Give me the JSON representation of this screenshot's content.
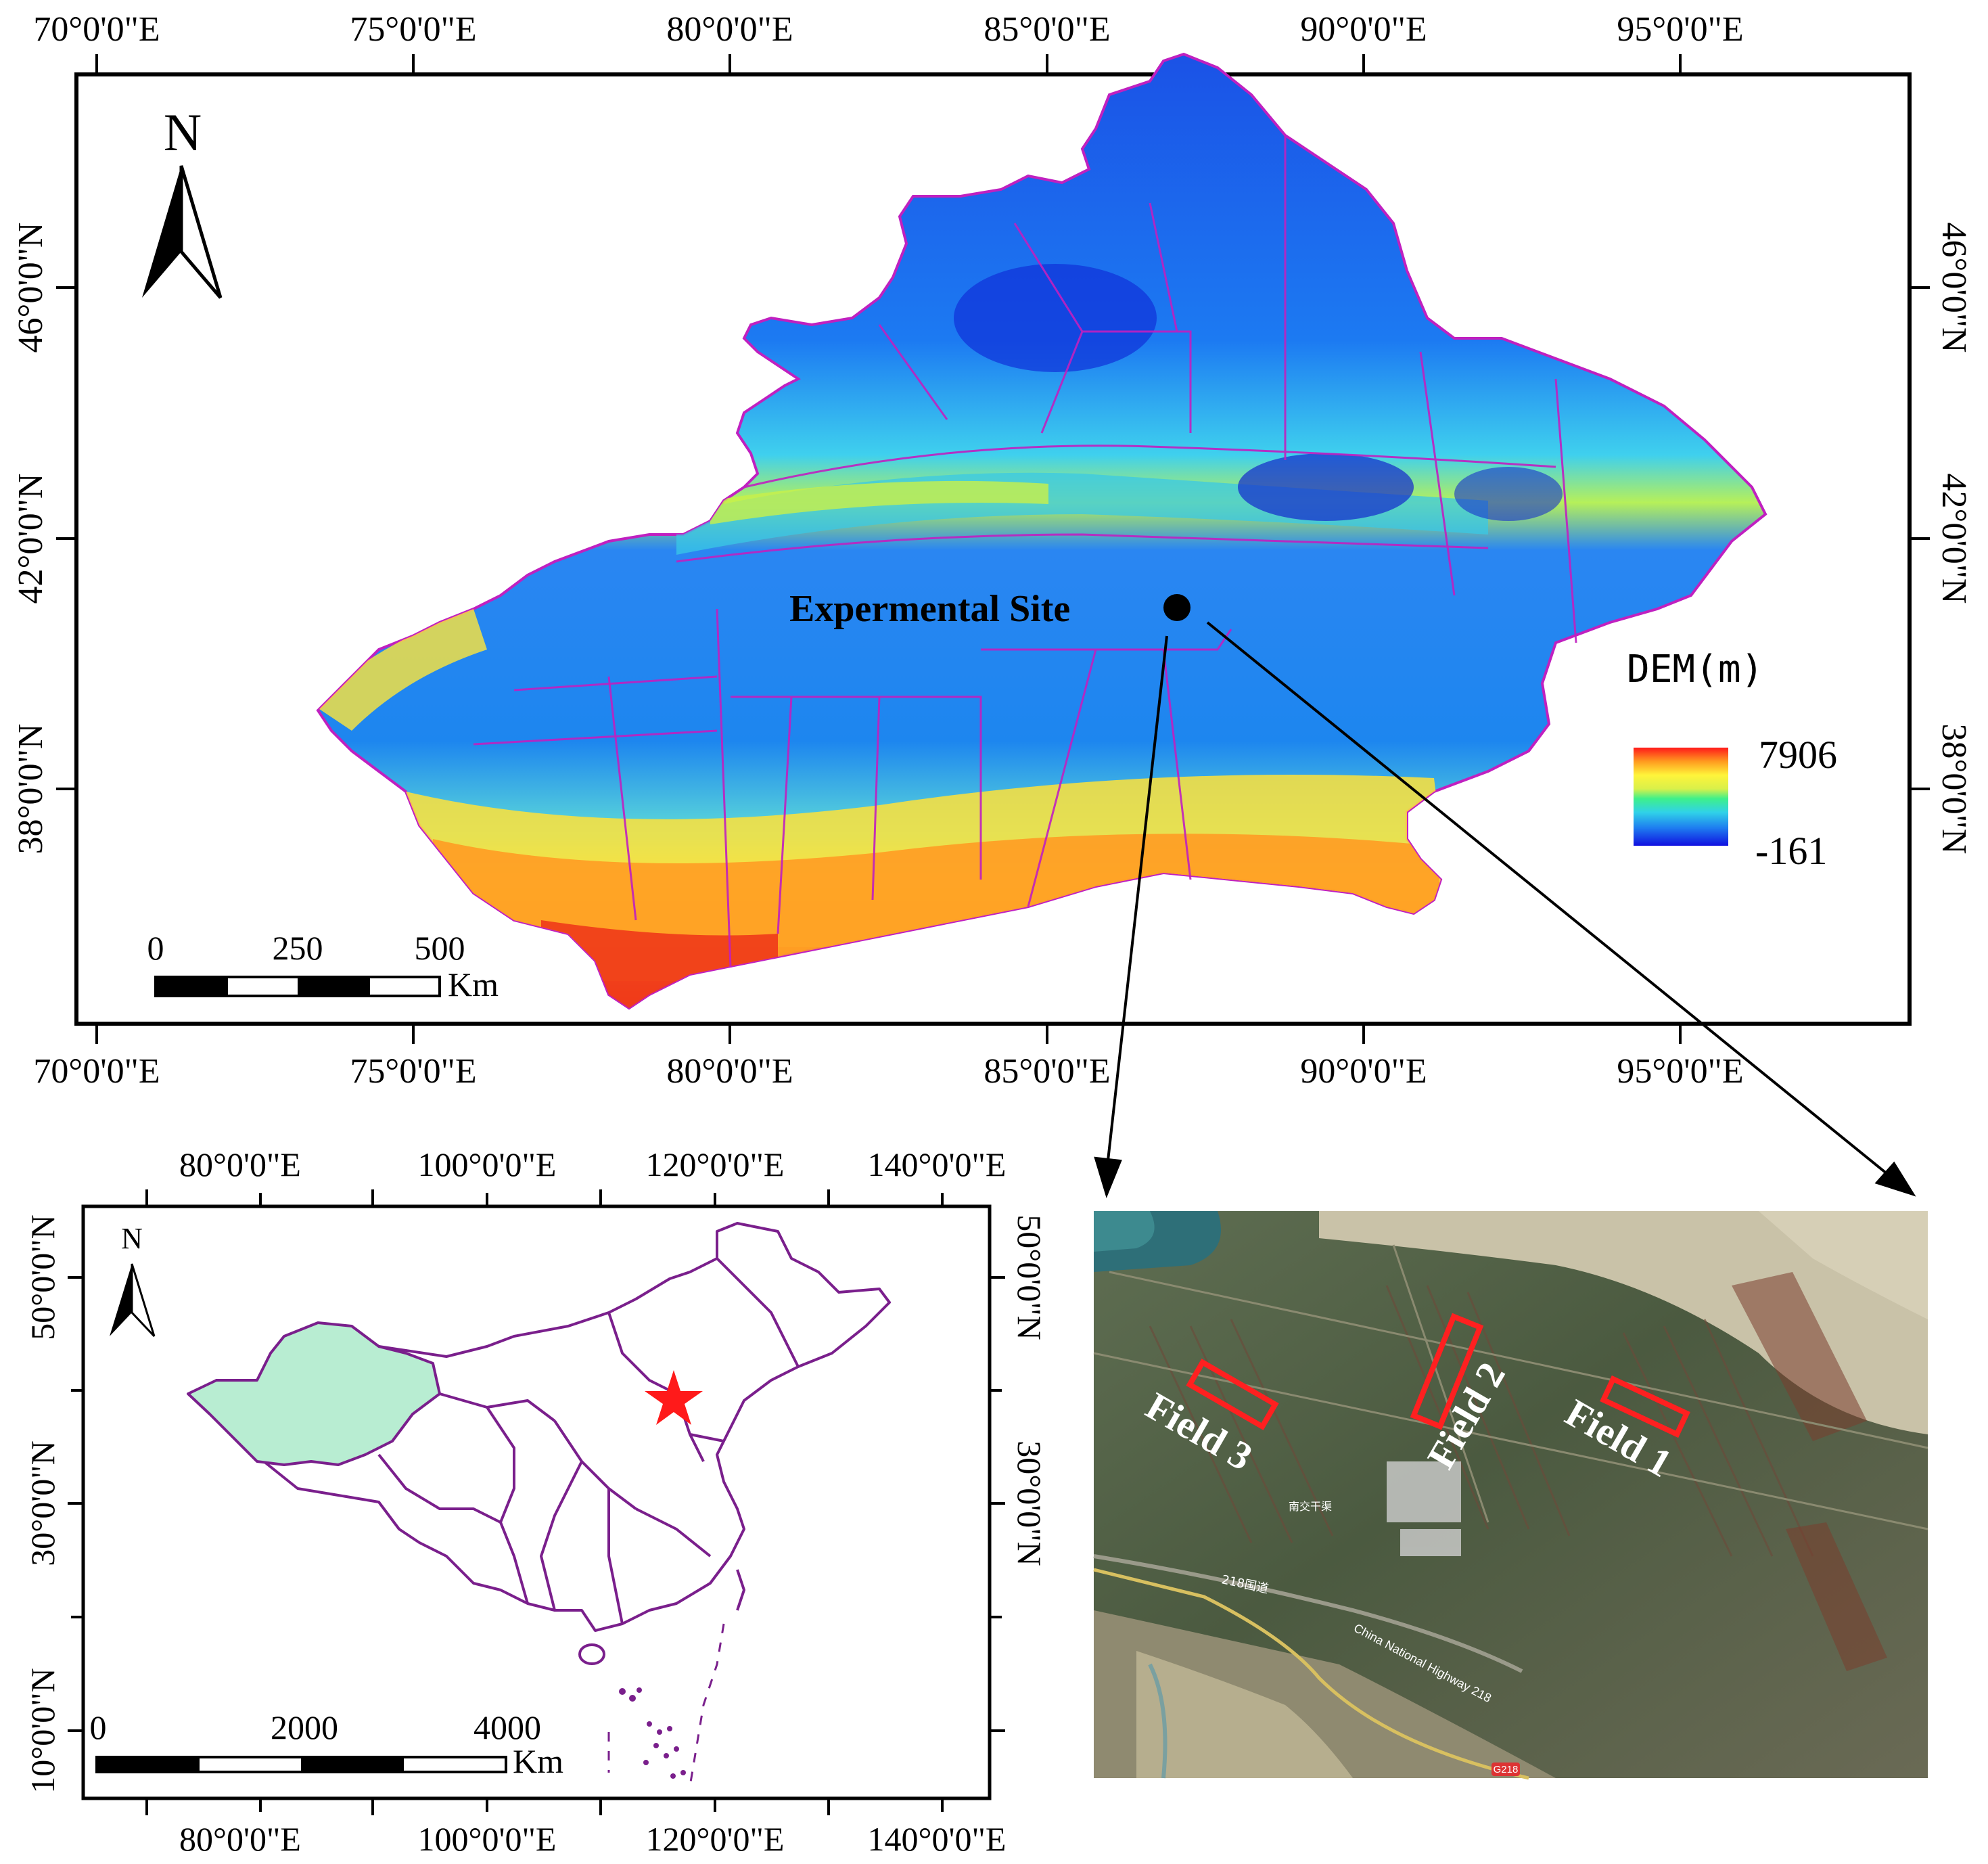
{
  "main_map": {
    "top_lon_ticks": [
      "70°0'0\"E",
      "75°0'0\"E",
      "80°0'0\"E",
      "85°0'0\"E",
      "90°0'0\"E",
      "95°0'0\"E"
    ],
    "bottom_lon_ticks": [
      "70°0'0\"E",
      "75°0'0\"E",
      "80°0'0\"E",
      "85°0'0\"E",
      "90°0'0\"E",
      "95°0'0\"E"
    ],
    "left_lat_ticks": [
      "46°0'0\"N",
      "42°0'0\"N",
      "38°0'0\"N"
    ],
    "right_lat_ticks": [
      "46°0'0\"N",
      "42°0'0\"N",
      "38°0'0\"N"
    ],
    "north_label": "N",
    "site_label": "Expermental  Site",
    "scale": {
      "labels": [
        "0",
        "250",
        "500"
      ],
      "unit": "Km"
    },
    "legend": {
      "title": "DEM(m)",
      "max": "7906",
      "min": "-161"
    }
  },
  "inset_china": {
    "top_lon_ticks": [
      "80°0'0\"E",
      "100°0'0\"E",
      "120°0'0\"E",
      "140°0'0\"E"
    ],
    "bottom_lon_ticks": [
      "80°0'0\"E",
      "100°0'0\"E",
      "120°0'0\"E",
      "140°0'0\"E"
    ],
    "left_lat_ticks": [
      "50°0'0\"N",
      "30°0'0\"N",
      "10°0'0\"N"
    ],
    "right_lat_ticks": [
      "50°0'0\"N",
      "30°0'0\"N"
    ],
    "north_label": "N",
    "scale": {
      "labels": [
        "0",
        "2000",
        "4000"
      ],
      "unit": "Km"
    },
    "colors": {
      "xinjiang_fill": "#b8edd2",
      "border": "#7a1f8c",
      "star": "#ff1a1a"
    }
  },
  "satellite": {
    "fields": [
      "Field 1",
      "Field 2",
      "Field 3"
    ],
    "road_labels": [
      "China National Highway 218",
      "218国道",
      "G218",
      "南交干渠"
    ]
  }
}
